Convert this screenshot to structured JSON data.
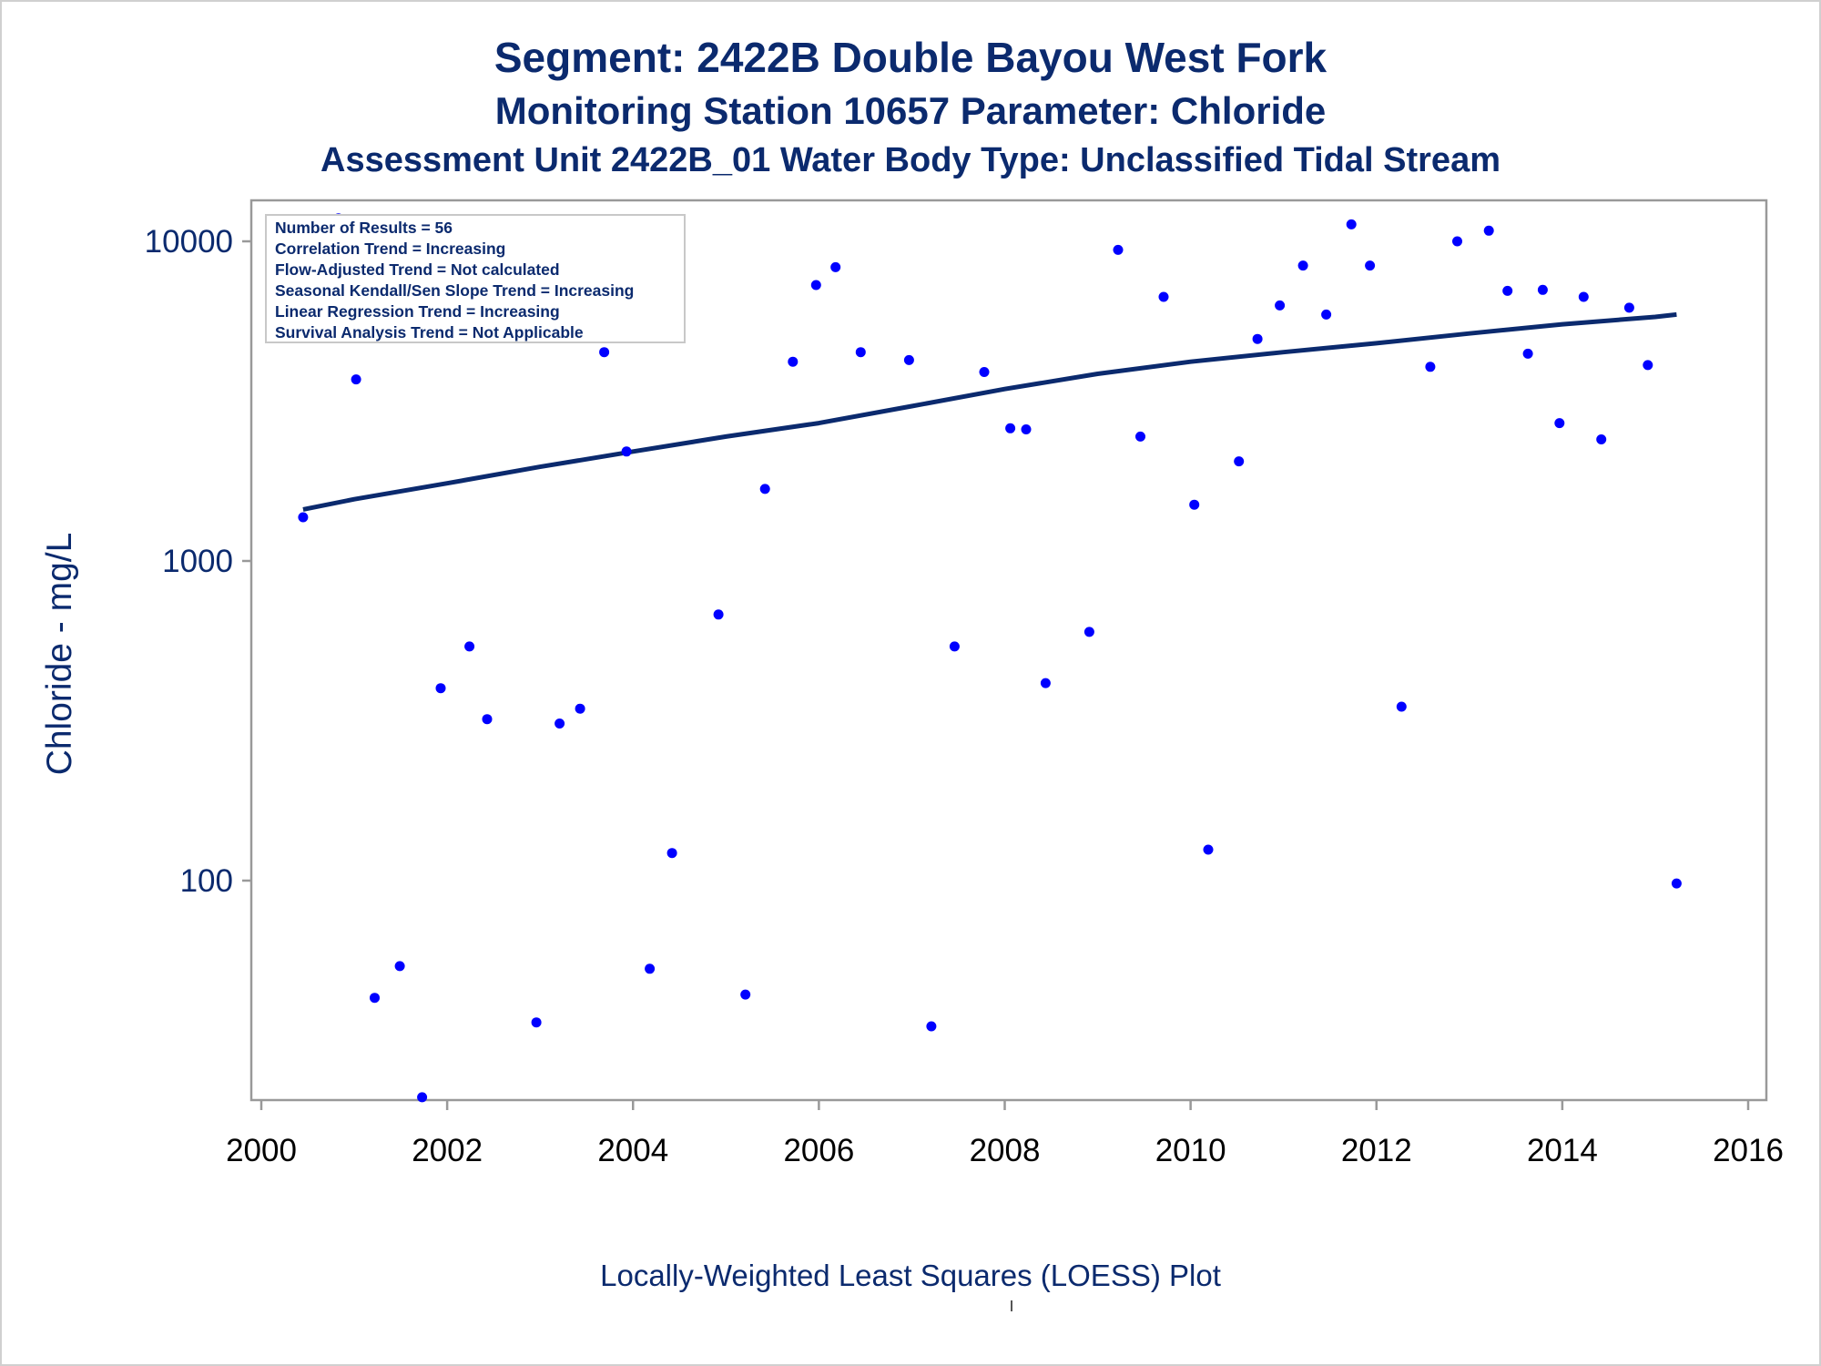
{
  "titles": {
    "line1": "Segment: 2422B  Double Bayou West Fork",
    "line2": "Monitoring Station 10657 Parameter: Chloride",
    "line3": "Assessment Unit 2422B_01   Water Body Type: Unclassified Tidal Stream"
  },
  "footnote": "Locally-Weighted Least Squares (LOESS) Plot",
  "stats": [
    "Number of Results = 56",
    "Correlation Trend = Increasing",
    "Flow-Adjusted Trend = Not calculated",
    "Seasonal Kendall/Sen Slope Trend = Increasing",
    "Linear Regression Trend = Increasing",
    "Survival Analysis Trend = Not Applicable"
  ],
  "chart_data": {
    "type": "scatter",
    "title": "Segment: 2422B  Double Bayou West Fork",
    "xlabel": "",
    "ylabel": "Chloride - mg/L",
    "yscale": "log",
    "xlim": [
      2000,
      2016
    ],
    "ylim": [
      20,
      13000
    ],
    "xticks": [
      2000,
      2002,
      2004,
      2006,
      2008,
      2010,
      2012,
      2014,
      2016
    ],
    "yticks": [
      100,
      1000,
      10000
    ],
    "grid": false,
    "colors": {
      "points": "#0000ff",
      "trend": "#0b2a6e",
      "axis": "#999999"
    },
    "series": [
      {
        "type": "scatter",
        "x": [
          2000.45,
          2000.83,
          2001.02,
          2001.22,
          2001.49,
          2001.73,
          2001.93,
          2002.24,
          2002.43,
          2002.96,
          2003.21,
          2003.43,
          2003.69,
          2003.93,
          2004.18,
          2004.42,
          2004.92,
          2005.21,
          2005.42,
          2005.72,
          2005.97,
          2006.18,
          2006.45,
          2006.97,
          2007.21,
          2007.46,
          2007.78,
          2008.06,
          2008.23,
          2008.44,
          2008.91,
          2009.22,
          2009.46,
          2009.71,
          2010.04,
          2010.19,
          2010.52,
          2010.72,
          2010.96,
          2011.21,
          2011.46,
          2011.73,
          2011.93,
          2012.27,
          2012.58,
          2012.87,
          2013.21,
          2013.41,
          2013.63,
          2013.79,
          2013.97,
          2014.23,
          2014.42,
          2014.72,
          2014.92,
          2015.23
        ],
        "y": [
          1370,
          11800,
          3700,
          43,
          54,
          21,
          400,
          540,
          320,
          36,
          310,
          345,
          4500,
          2200,
          53,
          122,
          680,
          44,
          1680,
          4200,
          7300,
          8300,
          4500,
          4250,
          35,
          540,
          3900,
          2600,
          2580,
          415,
          600,
          9400,
          2450,
          6700,
          1500,
          125,
          2050,
          4950,
          6300,
          8400,
          5900,
          11300,
          8400,
          350,
          4050,
          10000,
          10800,
          7000,
          4450,
          7050,
          2700,
          6700,
          2400,
          6200,
          4100,
          98
        ]
      },
      {
        "type": "line",
        "x": [
          2000.45,
          2001,
          2002,
          2003,
          2004,
          2005,
          2006,
          2007,
          2008,
          2009,
          2010,
          2011,
          2012,
          2013,
          2014,
          2015,
          2015.23
        ],
        "y": [
          1450,
          1560,
          1750,
          1970,
          2200,
          2450,
          2700,
          3050,
          3450,
          3850,
          4200,
          4500,
          4800,
          5150,
          5500,
          5800,
          5900
        ]
      }
    ]
  }
}
